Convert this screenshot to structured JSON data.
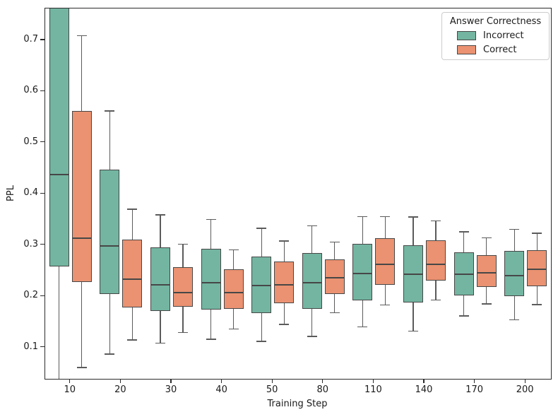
{
  "chart_data": {
    "type": "boxplot",
    "title": "",
    "xlabel": "Training Step",
    "ylabel": "PPL",
    "categories": [
      "10",
      "20",
      "30",
      "40",
      "50",
      "80",
      "110",
      "140",
      "170",
      "200"
    ],
    "yticks": [
      0.1,
      0.2,
      0.3,
      0.4,
      0.5,
      0.6,
      0.7
    ],
    "ylim": [
      0.039,
      0.762
    ],
    "grid": false,
    "legend": {
      "title": "Answer Correctness",
      "position": "upper right",
      "entries": [
        "Incorrect",
        "Correct"
      ]
    },
    "colors": {
      "incorrect_fill": "#73b5a1",
      "correct_fill": "#ea9271",
      "box_edge": "#474747",
      "whisker": "#5b5b5b",
      "spine": "#2b2b2b"
    },
    "series": [
      {
        "name": "Incorrect",
        "color": "#73b5a1",
        "boxes": [
          {
            "whisker_low": null,
            "q1": 0.258,
            "median": 0.438,
            "q3": null,
            "whisker_high": null,
            "clipped_top": true,
            "clipped_bottom": true
          },
          {
            "whisker_low": 0.088,
            "q1": 0.205,
            "median": 0.298,
            "q3": 0.447,
            "whisker_high": 0.563
          },
          {
            "whisker_low": 0.11,
            "q1": 0.172,
            "median": 0.222,
            "q3": 0.295,
            "whisker_high": 0.36
          },
          {
            "whisker_low": 0.117,
            "q1": 0.174,
            "median": 0.226,
            "q3": 0.293,
            "whisker_high": 0.351
          },
          {
            "whisker_low": 0.113,
            "q1": 0.167,
            "median": 0.221,
            "q3": 0.278,
            "whisker_high": 0.334
          },
          {
            "whisker_low": 0.123,
            "q1": 0.176,
            "median": 0.227,
            "q3": 0.284,
            "whisker_high": 0.339
          },
          {
            "whisker_low": 0.141,
            "q1": 0.192,
            "median": 0.245,
            "q3": 0.302,
            "whisker_high": 0.357
          },
          {
            "whisker_low": 0.133,
            "q1": 0.188,
            "median": 0.243,
            "q3": 0.3,
            "whisker_high": 0.356
          },
          {
            "whisker_low": 0.163,
            "q1": 0.202,
            "median": 0.243,
            "q3": 0.286,
            "whisker_high": 0.327
          },
          {
            "whisker_low": 0.155,
            "q1": 0.201,
            "median": 0.241,
            "q3": 0.289,
            "whisker_high": 0.332
          }
        ]
      },
      {
        "name": "Correct",
        "color": "#ea9271",
        "boxes": [
          {
            "whisker_low": 0.062,
            "q1": 0.228,
            "median": 0.314,
            "q3": 0.562,
            "whisker_high": 0.71
          },
          {
            "whisker_low": 0.116,
            "q1": 0.178,
            "median": 0.233,
            "q3": 0.311,
            "whisker_high": 0.371
          },
          {
            "whisker_low": 0.13,
            "q1": 0.18,
            "median": 0.207,
            "q3": 0.257,
            "whisker_high": 0.303
          },
          {
            "whisker_low": 0.137,
            "q1": 0.176,
            "median": 0.207,
            "q3": 0.253,
            "whisker_high": 0.292
          },
          {
            "whisker_low": 0.146,
            "q1": 0.186,
            "median": 0.223,
            "q3": 0.268,
            "whisker_high": 0.309
          },
          {
            "whisker_low": 0.169,
            "q1": 0.205,
            "median": 0.236,
            "q3": 0.272,
            "whisker_high": 0.307
          },
          {
            "whisker_low": 0.184,
            "q1": 0.223,
            "median": 0.262,
            "q3": 0.313,
            "whisker_high": 0.357
          },
          {
            "whisker_low": 0.194,
            "q1": 0.231,
            "median": 0.263,
            "q3": 0.31,
            "whisker_high": 0.348
          },
          {
            "whisker_low": 0.186,
            "q1": 0.219,
            "median": 0.246,
            "q3": 0.281,
            "whisker_high": 0.315
          },
          {
            "whisker_low": 0.185,
            "q1": 0.22,
            "median": 0.253,
            "q3": 0.29,
            "whisker_high": 0.324
          }
        ]
      }
    ]
  }
}
